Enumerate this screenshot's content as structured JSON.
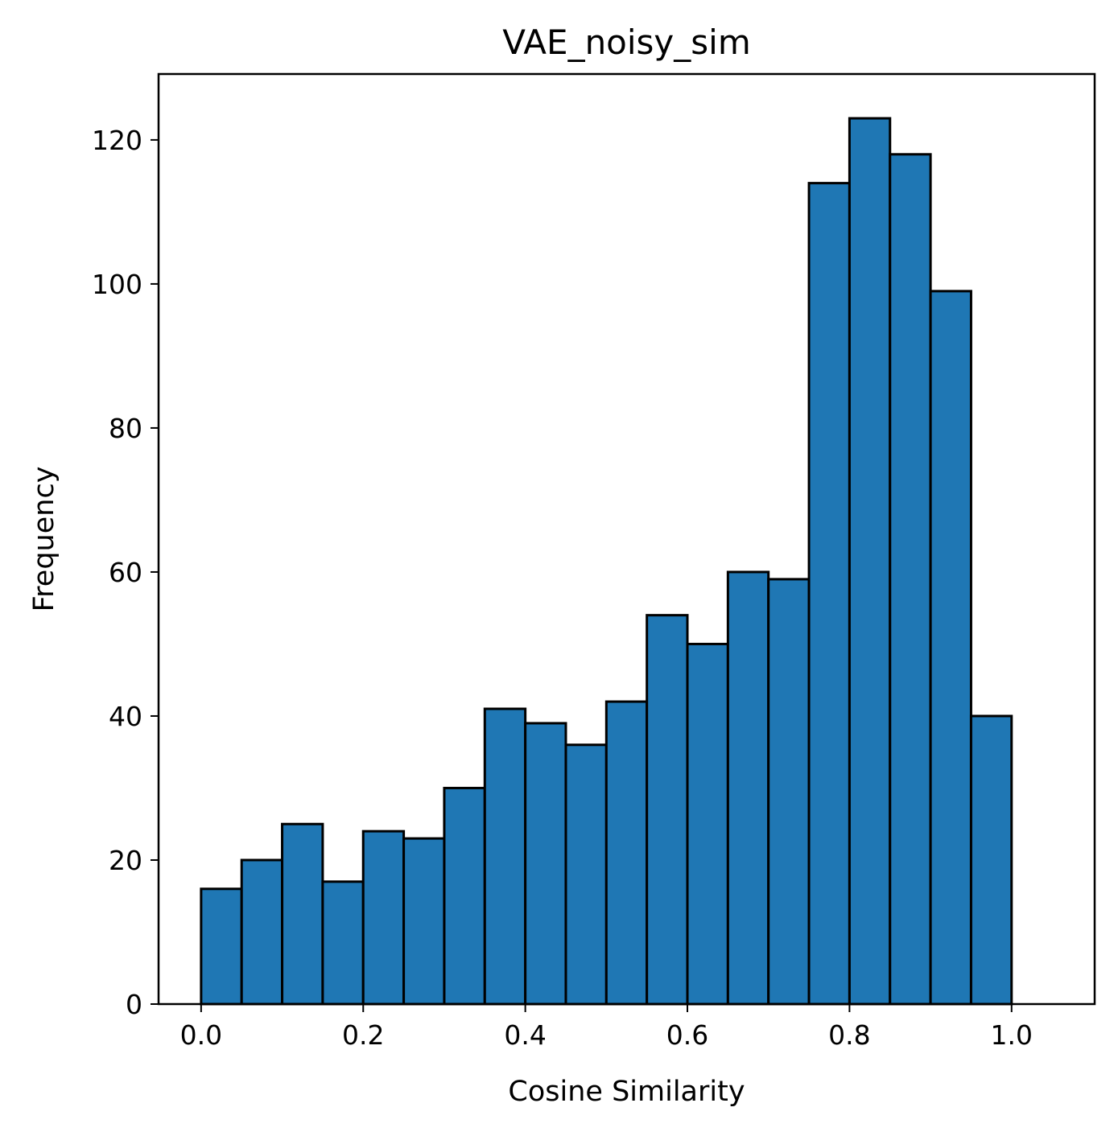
{
  "chart_data": {
    "type": "bar",
    "title": "VAE_noisy_sim",
    "xlabel": "Cosine Similarity",
    "ylabel": "Frequency",
    "bin_edges": [
      0.0,
      0.05,
      0.1,
      0.15,
      0.2,
      0.25,
      0.3,
      0.35,
      0.4,
      0.45,
      0.5,
      0.55,
      0.6,
      0.65,
      0.7,
      0.75,
      0.8,
      0.85,
      0.9,
      0.95,
      1.0,
      1.05
    ],
    "values": [
      16,
      20,
      25,
      17,
      24,
      23,
      30,
      41,
      39,
      36,
      42,
      54,
      50,
      60,
      59,
      114,
      123,
      118,
      99,
      40,
      0
    ],
    "xlim": [
      -0.0525,
      1.1025
    ],
    "ylim": [
      0,
      129.15
    ],
    "xticks": [
      "0.0",
      "0.2",
      "0.4",
      "0.6",
      "0.8",
      "1.0"
    ],
    "xtick_values": [
      0.0,
      0.2,
      0.4,
      0.6,
      0.8,
      1.0
    ],
    "yticks": [
      "0",
      "20",
      "40",
      "60",
      "80",
      "100",
      "120"
    ],
    "ytick_values": [
      0,
      20,
      40,
      60,
      80,
      100,
      120
    ],
    "grid": false,
    "legend": "none",
    "bar_color": "#1f77b4",
    "edge_color": "#000000"
  }
}
